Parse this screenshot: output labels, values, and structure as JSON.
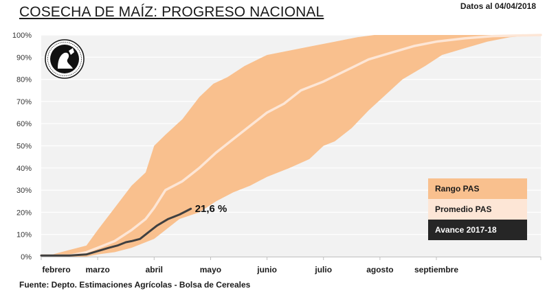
{
  "header": {
    "title": "COSECHA DE MAÍZ: PROGRESO NACIONAL",
    "date_note": "Datos al 04/04/2018"
  },
  "footer": {
    "source": "Fuente: Depto. Estimaciones Agrícolas - Bolsa de Cereales"
  },
  "logo": {
    "icon": "bolsa-de-cereales-seal-icon"
  },
  "colors": {
    "plot_bg": "#f2f2f2",
    "range": "#f9c08e",
    "average": "#fde6d6",
    "avance": "#404040",
    "legend_avance_bg": "#262626",
    "gridline": "#ffffff",
    "axis": "#bfbfbf"
  },
  "chart_data": {
    "type": "area",
    "title": "COSECHA DE MAÍZ: PROGRESO NACIONAL",
    "xlabel": "",
    "ylabel": "",
    "x_unit": "months since start of febrero",
    "xlim": [
      0,
      8.85
    ],
    "ylim": [
      0,
      100
    ],
    "grid": true,
    "legend_position": "bottom-right",
    "x_ticks": [
      {
        "x": 0,
        "label": "febrero"
      },
      {
        "x": 1,
        "label": "marzo"
      },
      {
        "x": 2,
        "label": "abril"
      },
      {
        "x": 3,
        "label": "mayo"
      },
      {
        "x": 4,
        "label": "junio"
      },
      {
        "x": 5,
        "label": "julio"
      },
      {
        "x": 6,
        "label": "agosto"
      },
      {
        "x": 7,
        "label": "septiembre"
      },
      {
        "x": 8.85,
        "label": ""
      }
    ],
    "y_ticks": [
      0,
      10,
      20,
      30,
      40,
      50,
      60,
      70,
      80,
      90,
      100
    ],
    "y_tick_format": "{v}%",
    "series": [
      {
        "name": "Rango PAS",
        "kind": "band",
        "upper": [
          [
            0,
            1
          ],
          [
            0.2,
            1
          ],
          [
            0.5,
            3
          ],
          [
            0.8,
            5
          ],
          [
            1,
            12
          ],
          [
            1.3,
            22
          ],
          [
            1.6,
            32
          ],
          [
            1.85,
            38
          ],
          [
            2,
            50
          ],
          [
            2.2,
            55
          ],
          [
            2.5,
            62
          ],
          [
            2.8,
            72
          ],
          [
            3.05,
            78
          ],
          [
            3.3,
            81
          ],
          [
            3.6,
            86
          ],
          [
            4,
            91
          ],
          [
            4.4,
            93
          ],
          [
            4.8,
            95
          ],
          [
            5.2,
            97
          ],
          [
            5.6,
            99
          ],
          [
            5.9,
            100
          ],
          [
            8.85,
            100
          ]
        ],
        "lower": [
          [
            0,
            0
          ],
          [
            0.5,
            0
          ],
          [
            0.8,
            0
          ],
          [
            1,
            1
          ],
          [
            1.3,
            2
          ],
          [
            1.6,
            4
          ],
          [
            1.85,
            6.5
          ],
          [
            2,
            8
          ],
          [
            2.2,
            12
          ],
          [
            2.45,
            17
          ],
          [
            2.8,
            20
          ],
          [
            3.1,
            25
          ],
          [
            3.4,
            29
          ],
          [
            3.7,
            32
          ],
          [
            4,
            36
          ],
          [
            4.4,
            40
          ],
          [
            4.75,
            44
          ],
          [
            5,
            50
          ],
          [
            5.2,
            52
          ],
          [
            5.5,
            58
          ],
          [
            5.8,
            66
          ],
          [
            6.1,
            73
          ],
          [
            6.4,
            80
          ],
          [
            6.8,
            86
          ],
          [
            7.1,
            91
          ],
          [
            7.5,
            94
          ],
          [
            7.9,
            97
          ],
          [
            8.3,
            99
          ],
          [
            8.85,
            100
          ]
        ]
      },
      {
        "name": "Promedio PAS",
        "kind": "line",
        "points": [
          [
            0,
            0.5
          ],
          [
            0.5,
            0.5
          ],
          [
            0.8,
            2
          ],
          [
            1,
            4
          ],
          [
            1.3,
            7
          ],
          [
            1.6,
            12
          ],
          [
            1.85,
            17
          ],
          [
            2,
            22
          ],
          [
            2.2,
            30
          ],
          [
            2.5,
            34
          ],
          [
            2.8,
            40
          ],
          [
            3.1,
            47
          ],
          [
            3.4,
            53
          ],
          [
            3.7,
            59
          ],
          [
            4,
            65
          ],
          [
            4.3,
            69
          ],
          [
            4.6,
            75
          ],
          [
            5,
            79
          ],
          [
            5.4,
            84
          ],
          [
            5.8,
            89
          ],
          [
            6.2,
            92
          ],
          [
            6.6,
            95
          ],
          [
            7,
            97
          ],
          [
            7.5,
            98.5
          ],
          [
            8,
            99.5
          ],
          [
            8.85,
            100
          ]
        ]
      },
      {
        "name": "Avance 2017-18",
        "kind": "line",
        "points": [
          [
            0,
            0.5
          ],
          [
            0.5,
            0.5
          ],
          [
            0.8,
            1
          ],
          [
            1,
            2.5
          ],
          [
            1.2,
            4
          ],
          [
            1.35,
            5
          ],
          [
            1.5,
            6.5
          ],
          [
            1.6,
            7
          ],
          [
            1.75,
            8
          ],
          [
            1.9,
            11
          ],
          [
            2.05,
            14
          ],
          [
            2.25,
            17
          ],
          [
            2.45,
            19
          ],
          [
            2.65,
            21.6
          ]
        ]
      }
    ],
    "annotations": [
      {
        "x": 2.65,
        "y": 21.6,
        "text": "21,6 %"
      }
    ],
    "legend": [
      {
        "label": "Rango PAS",
        "swatch": "#f9c08e",
        "text_color": "#1a1a1a"
      },
      {
        "label": "Promedio PAS",
        "swatch": "#fde6d6",
        "text_color": "#1a1a1a"
      },
      {
        "label": "Avance 2017-18",
        "swatch": "#262626",
        "text_color": "#ffffff"
      }
    ]
  }
}
